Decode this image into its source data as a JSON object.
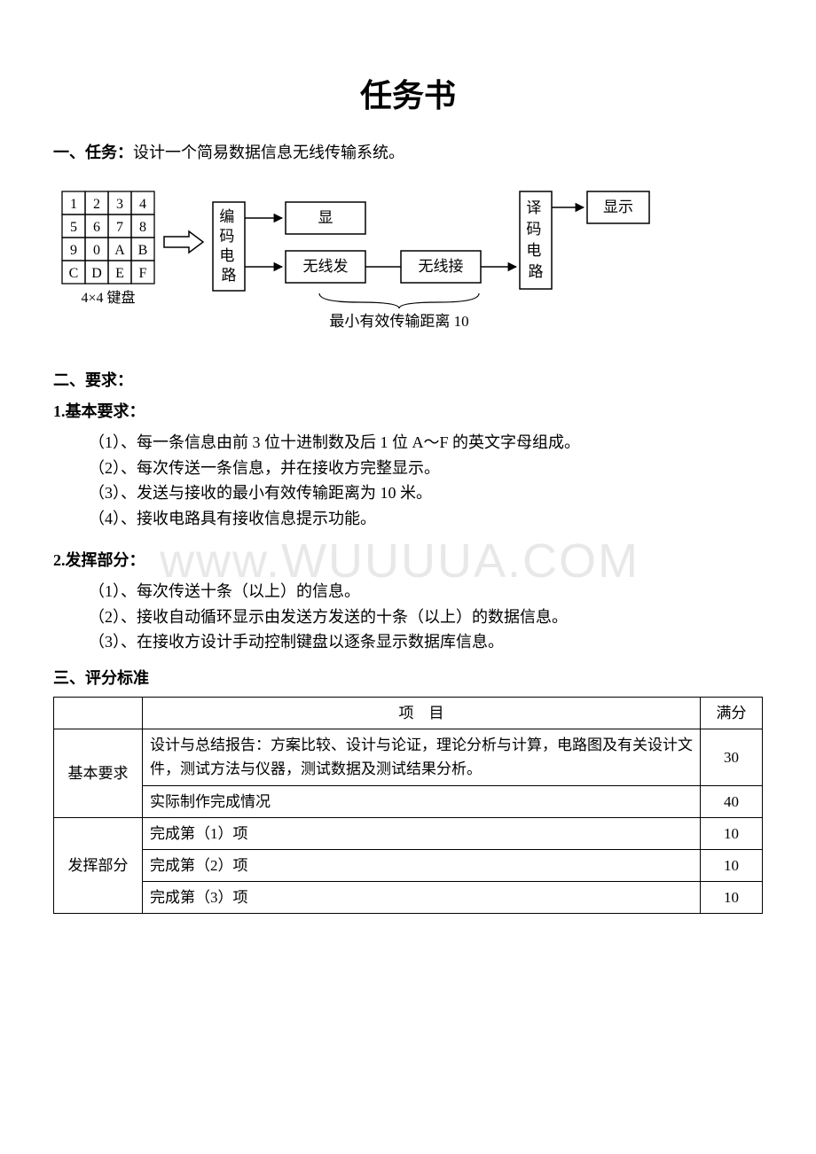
{
  "title": "任务书",
  "section1": {
    "label": "一、任务：",
    "text": "设计一个简易数据信息无线传输系统。"
  },
  "diagram": {
    "keypad": {
      "cells": [
        [
          "1",
          "2",
          "3",
          "4"
        ],
        [
          "5",
          "6",
          "7",
          "8"
        ],
        [
          "9",
          "0",
          "A",
          "B"
        ],
        [
          "C",
          "D",
          "E",
          "F"
        ]
      ],
      "label": "4×4 键盘",
      "cell_size": 26,
      "font_size": 16,
      "border_color": "#000"
    },
    "boxes": {
      "encoder": "编码电路",
      "display1": "显",
      "tx": "无线发",
      "rx": "无线接",
      "decoder": "译码电路",
      "display2": "显示"
    },
    "caption": "最小有效传输距离 10",
    "arrow_color": "#000",
    "box_border": "#000",
    "font_size": 17
  },
  "section2": {
    "label": "二、要求：",
    "basic_label": "1.基本要求：",
    "basic_items": [
      "（1）、每一条信息由前 3 位十进制数及后 1 位 A～F 的英文字母组成。",
      "（2）、每次传送一条信息，并在接收方完整显示。",
      "（3）、发送与接收的最小有效传输距离为 10 米。",
      "（4）、接收电路具有接收信息提示功能。"
    ],
    "adv_label": "2.发挥部分：",
    "adv_items": [
      "（1）、每次传送十条（以上）的信息。",
      "（2）、接收自动循环显示由发送方发送的十条（以上）的数据信息。",
      "（3）、在接收方设计手动控制键盘以逐条显示数据库信息。"
    ]
  },
  "section3": {
    "label": "三、评分标准",
    "headers": {
      "item": "项　目",
      "score": "满分"
    },
    "groups": [
      {
        "name": "基本要求",
        "rows": [
          {
            "item": "设计与总结报告：方案比较、设计与论证，理论分析与计算，电路图及有关设计文件，测试方法与仪器，测试数据及测试结果分析。",
            "score": "30"
          },
          {
            "item": "实际制作完成情况",
            "score": "40"
          }
        ]
      },
      {
        "name": "发挥部分",
        "rows": [
          {
            "item": "完成第（1）项",
            "score": "10"
          },
          {
            "item": "完成第（2）项",
            "score": "10"
          },
          {
            "item": "完成第（3）项",
            "score": "10"
          }
        ]
      }
    ]
  },
  "watermark_text": "www.WUUUUA.COM"
}
